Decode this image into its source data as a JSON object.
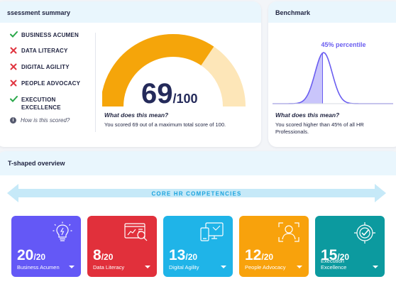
{
  "assessment": {
    "title": "ssessment summary",
    "skills": [
      {
        "label": "BUSINESS ACUMEN",
        "status": "pass"
      },
      {
        "label": "DATA LITERACY",
        "status": "fail"
      },
      {
        "label": "DIGITAL AGILITY",
        "status": "fail"
      },
      {
        "label": "PEOPLE ADVOCACY",
        "status": "fail"
      },
      {
        "label": "EXECUTION EXCELLENCE",
        "status": "pass"
      }
    ],
    "how_scored": "How is this scored?",
    "score": "69",
    "score_max": "/100",
    "score_fraction": 0.69,
    "meaning_title": "What does this mean?",
    "meaning_text": "You scored 69 out of a maximum total score of 100."
  },
  "benchmark": {
    "title": "Benchmark",
    "percentile_label": "45% percentile",
    "percentile": 45,
    "meaning_title": "What does this mean?",
    "meaning_text": "You scored higher than 45% of all HR Professionals."
  },
  "tshaped": {
    "title": "T-shaped overview",
    "banner": "CORE HR COMPETENCIES",
    "tiles": [
      {
        "score": "20",
        "max": "/20",
        "label": "Business Acumen",
        "color": "#6458f6",
        "icon": "lightbulb-icon"
      },
      {
        "score": "8",
        "max": "/20",
        "label": "Data Literacy",
        "color": "#e1303b",
        "icon": "data-analysis-icon"
      },
      {
        "score": "13",
        "max": "/20",
        "label": "Digital Agility",
        "color": "#1fb4e8",
        "icon": "devices-icon"
      },
      {
        "score": "12",
        "max": "/20",
        "label": "People Advocacy",
        "color": "#f8a20c",
        "icon": "person-focus-icon"
      },
      {
        "score": "15",
        "max": "/20",
        "label": "Execution Excellence",
        "color": "#0c9a9f",
        "icon": "target-check-icon"
      }
    ]
  },
  "colors": {
    "gauge_fill": "#f5a50a",
    "gauge_track": "#fde6b8",
    "bench_line": "#6a5df0",
    "bench_fill": "#c9c5fb",
    "check": "#2aa84a",
    "cross": "#e0343f"
  }
}
